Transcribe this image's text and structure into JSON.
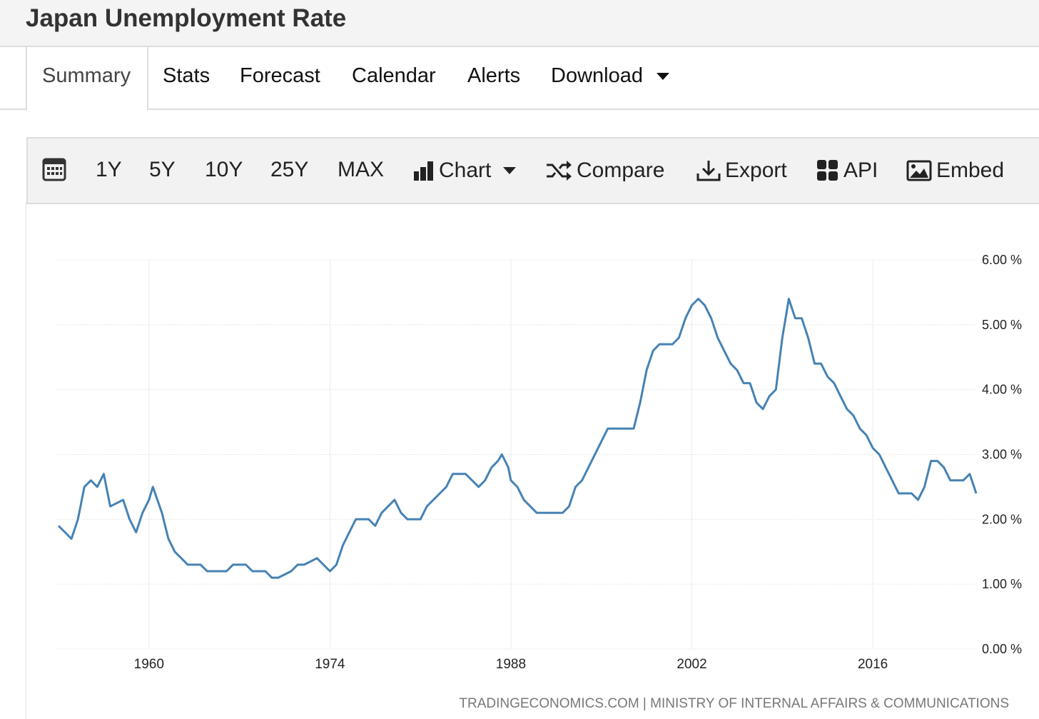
{
  "header": {
    "title": "Japan Unemployment Rate"
  },
  "tabs": [
    "Summary",
    "Stats",
    "Forecast",
    "Calendar",
    "Alerts",
    "Download"
  ],
  "toolbar": {
    "ranges": [
      "1Y",
      "5Y",
      "10Y",
      "25Y",
      "MAX"
    ],
    "chart": "Chart",
    "compare": "Compare",
    "export": "Export",
    "api": "API",
    "embed": "Embed"
  },
  "chart_data": {
    "type": "line",
    "color": "#4682b4",
    "x": [
      1953.0,
      1953.5,
      1954,
      1954.5,
      1955,
      1955.5,
      1956,
      1956.5,
      1957,
      1958,
      1958.5,
      1959,
      1959.5,
      1960,
      1960.3,
      1961,
      1961.5,
      1962,
      1962.5,
      1963,
      1964,
      1964.5,
      1965,
      1966,
      1966.5,
      1967,
      1967.5,
      1968,
      1969,
      1969.5,
      1970,
      1971,
      1971.5,
      1972,
      1973,
      1973.5,
      1974,
      1974.5,
      1975,
      1975.5,
      1976,
      1977,
      1977.5,
      1978,
      1979,
      1979.5,
      1980,
      1981,
      1981.5,
      1982,
      1983,
      1983.5,
      1984,
      1984.5,
      1985,
      1985.5,
      1986,
      1986.5,
      1987,
      1987.3,
      1987.8,
      1988,
      1988.5,
      1989,
      1990,
      1991,
      1992,
      1992.5,
      1993,
      1993.5,
      1994,
      1995,
      1995.5,
      1996,
      1997,
      1997.5,
      1998,
      1998.5,
      1999,
      1999.5,
      2000,
      2000.5,
      2001,
      2001.5,
      2002,
      2002.5,
      2003,
      2003.5,
      2004,
      2004.5,
      2005,
      2005.5,
      2006,
      2006.5,
      2007,
      2007.5,
      2008,
      2008.5,
      2009,
      2009.5,
      2010,
      2010.5,
      2011,
      2011.5,
      2012,
      2012.5,
      2013,
      2013.5,
      2014,
      2014.5,
      2015,
      2015.5,
      2016,
      2016.5,
      2017,
      2017.5,
      2018,
      2018.5,
      2019,
      2019.5,
      2020,
      2020.5,
      2021,
      2021.5,
      2022,
      2022.5,
      2023,
      2023.5,
      2024
    ],
    "values": [
      1.9,
      1.8,
      1.7,
      2.0,
      2.5,
      2.6,
      2.5,
      2.7,
      2.2,
      2.3,
      2.0,
      1.8,
      2.1,
      2.3,
      2.5,
      2.1,
      1.7,
      1.5,
      1.4,
      1.3,
      1.3,
      1.2,
      1.2,
      1.2,
      1.3,
      1.3,
      1.3,
      1.2,
      1.2,
      1.1,
      1.1,
      1.2,
      1.3,
      1.3,
      1.4,
      1.3,
      1.2,
      1.3,
      1.6,
      1.8,
      2.0,
      2.0,
      1.9,
      2.1,
      2.3,
      2.1,
      2.0,
      2.0,
      2.2,
      2.3,
      2.5,
      2.7,
      2.7,
      2.7,
      2.6,
      2.5,
      2.6,
      2.8,
      2.9,
      3.0,
      2.8,
      2.6,
      2.5,
      2.3,
      2.1,
      2.1,
      2.1,
      2.2,
      2.5,
      2.6,
      2.8,
      3.2,
      3.4,
      3.4,
      3.4,
      3.4,
      3.8,
      4.3,
      4.6,
      4.7,
      4.7,
      4.7,
      4.8,
      5.1,
      5.3,
      5.4,
      5.3,
      5.1,
      4.8,
      4.6,
      4.4,
      4.3,
      4.1,
      4.1,
      3.8,
      3.7,
      3.9,
      4.0,
      4.8,
      5.4,
      5.1,
      5.1,
      4.8,
      4.4,
      4.4,
      4.2,
      4.1,
      3.9,
      3.7,
      3.6,
      3.4,
      3.3,
      3.1,
      3.0,
      2.8,
      2.6,
      2.4,
      2.4,
      2.4,
      2.3,
      2.5,
      2.9,
      2.9,
      2.8,
      2.6,
      2.6,
      2.6,
      2.7,
      2.4
    ],
    "xlim": [
      1953,
      2024
    ],
    "xticks": [
      1960,
      1974,
      1988,
      2002,
      2016
    ],
    "ylim": [
      0,
      6
    ],
    "yticks": [
      {
        "value": 0,
        "label": "0.00 %"
      },
      {
        "value": 1,
        "label": "1.00 %"
      },
      {
        "value": 2,
        "label": "2.00 %"
      },
      {
        "value": 3,
        "label": "3.00 %"
      },
      {
        "value": 4,
        "label": "4.00 %"
      },
      {
        "value": 5,
        "label": "5.00 %"
      },
      {
        "value": 6,
        "label": "6.00 %"
      }
    ],
    "grid": true,
    "source": "TRADINGECONOMICS.COM | MINISTRY OF INTERNAL AFFAIRS & COMMUNICATIONS"
  }
}
